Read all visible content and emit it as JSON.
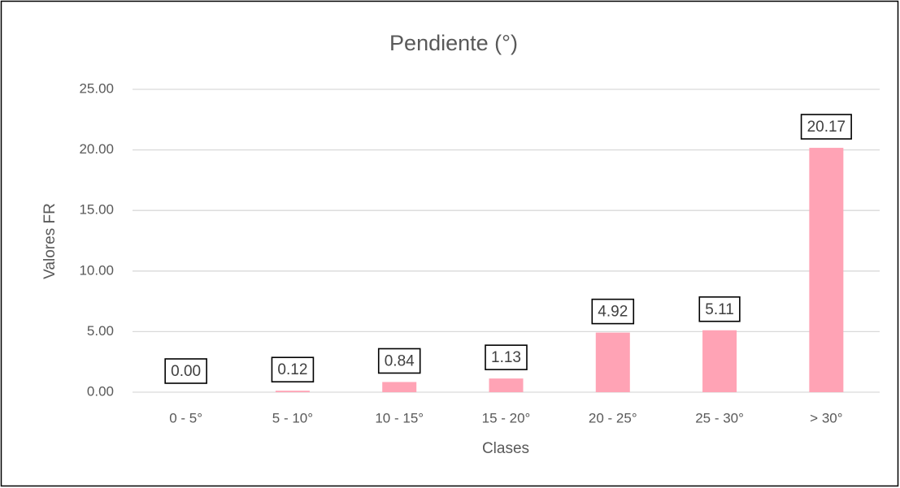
{
  "chart_data": {
    "type": "bar",
    "title": "Pendiente (°)",
    "x_label": "Clases",
    "y_label": "Valores FR",
    "categories": [
      "0 - 5°",
      "5 - 10°",
      "10 - 15°",
      "15 - 20°",
      "20 - 25°",
      "25 - 30°",
      "> 30°"
    ],
    "values": [
      0,
      0.12,
      0.84,
      1.13,
      4.92,
      5.11,
      20.17
    ],
    "value_labels": [
      "0.00",
      "0.12",
      "0.84",
      "1.13",
      "4.92",
      "5.11",
      "20.17"
    ],
    "color": "#ffa3b5",
    "ylim": [
      0,
      25
    ],
    "yticks": [
      {
        "value": 0,
        "label": "0.00"
      },
      {
        "value": 5,
        "label": "5.00"
      },
      {
        "value": 10,
        "label": "10.00"
      },
      {
        "value": 15,
        "label": "15.00"
      },
      {
        "value": 20,
        "label": "20.00"
      },
      {
        "value": 25,
        "label": "25.00"
      }
    ],
    "grid": true
  }
}
